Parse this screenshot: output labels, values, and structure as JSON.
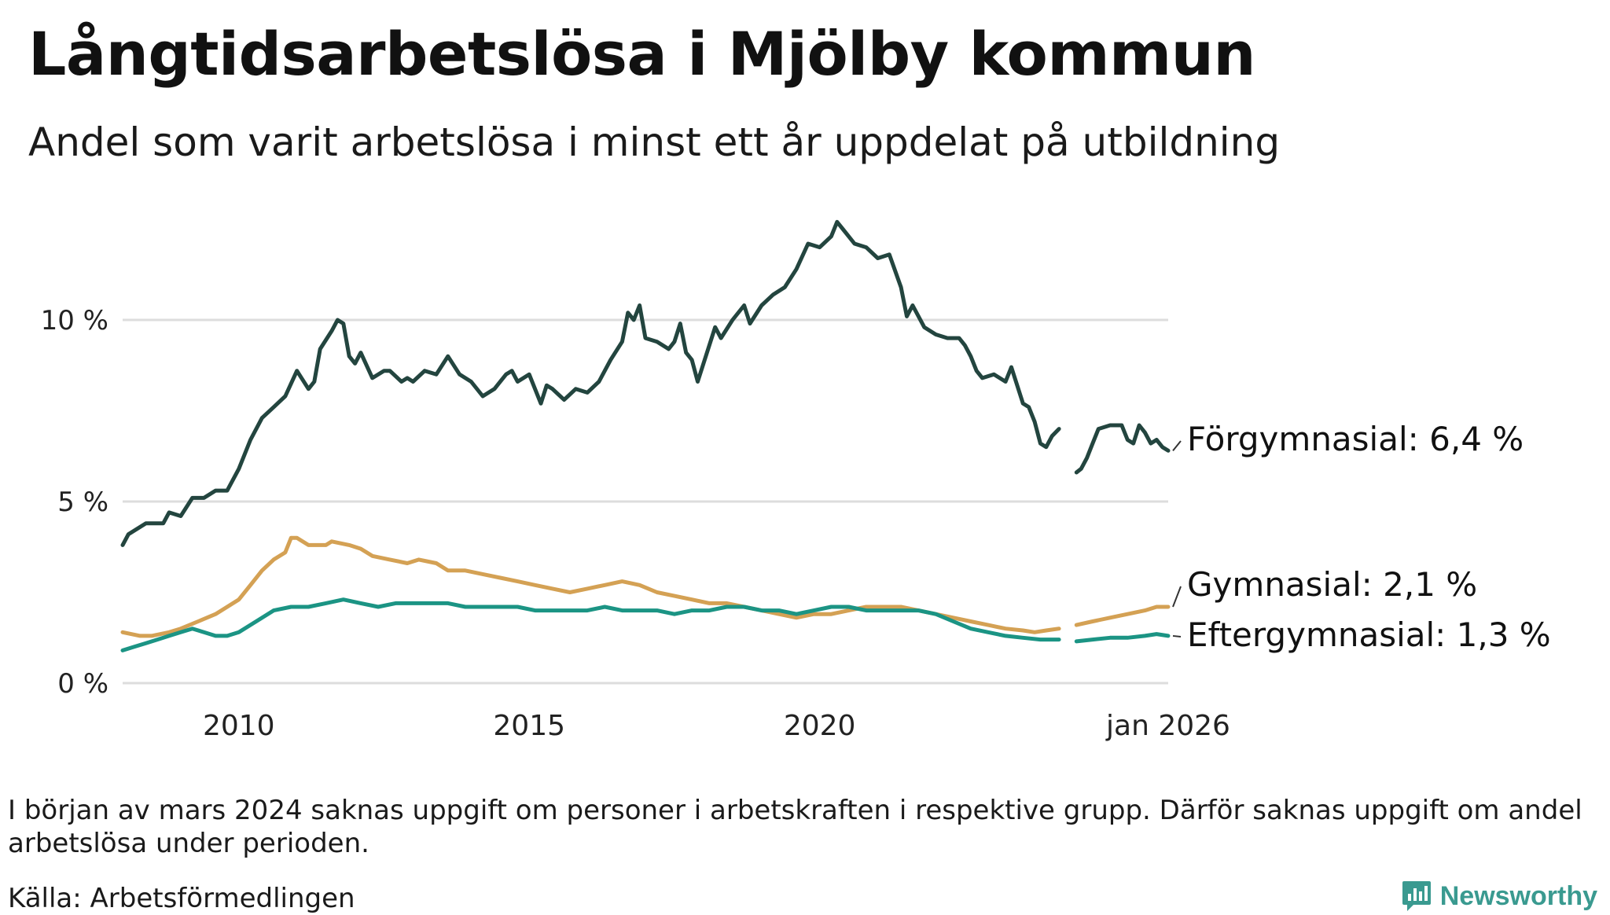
{
  "header": {
    "title": "Långtidsarbetslösa i Mjölby kommun",
    "subtitle": "Andel som varit arbetslösa i minst ett år uppdelat på utbildning"
  },
  "footer": {
    "note": "I början av mars 2024 saknas uppgift om personer i arbetskraften i respektive grupp. Därför saknas uppgift om andel arbetslösa under perioden.",
    "source": "Källa: Arbetsförmedlingen",
    "brand": "Newsworthy"
  },
  "colors": {
    "forgymnasial": "#23453f",
    "gymnasial": "#d4a154",
    "eftergymnasial": "#1b9484",
    "grid": "#dddddd",
    "brand": "#3a9a90"
  },
  "chart_data": {
    "type": "line",
    "xlabel": "",
    "ylabel": "",
    "xlim": [
      2008.0,
      2026.0
    ],
    "ylim": [
      0,
      13
    ],
    "yticks": [
      {
        "value": 0,
        "label": "0 %"
      },
      {
        "value": 5,
        "label": "5 %"
      },
      {
        "value": 10,
        "label": "10 %"
      }
    ],
    "xticks": [
      {
        "value": 2010,
        "label": "2010"
      },
      {
        "value": 2015,
        "label": "2015"
      },
      {
        "value": 2020,
        "label": "2020"
      },
      {
        "value": 2026.0,
        "label": "jan 2026"
      }
    ],
    "gap": [
      2024.12,
      2024.42
    ],
    "series": [
      {
        "key": "forgymnasial",
        "name": "Förgymnasial",
        "end_label": "Förgymnasial: 6,4 %",
        "points": [
          [
            2008.0,
            3.8
          ],
          [
            2008.1,
            4.1
          ],
          [
            2008.4,
            4.4
          ],
          [
            2008.7,
            4.4
          ],
          [
            2008.8,
            4.7
          ],
          [
            2009.0,
            4.6
          ],
          [
            2009.2,
            5.1
          ],
          [
            2009.4,
            5.1
          ],
          [
            2009.6,
            5.3
          ],
          [
            2009.8,
            5.3
          ],
          [
            2010.0,
            5.9
          ],
          [
            2010.2,
            6.7
          ],
          [
            2010.4,
            7.3
          ],
          [
            2010.6,
            7.6
          ],
          [
            2010.8,
            7.9
          ],
          [
            2011.0,
            8.6
          ],
          [
            2011.2,
            8.1
          ],
          [
            2011.3,
            8.3
          ],
          [
            2011.4,
            9.2
          ],
          [
            2011.6,
            9.7
          ],
          [
            2011.7,
            10.0
          ],
          [
            2011.8,
            9.9
          ],
          [
            2011.9,
            9.0
          ],
          [
            2012.0,
            8.8
          ],
          [
            2012.1,
            9.1
          ],
          [
            2012.3,
            8.4
          ],
          [
            2012.5,
            8.6
          ],
          [
            2012.6,
            8.6
          ],
          [
            2012.8,
            8.3
          ],
          [
            2012.9,
            8.4
          ],
          [
            2013.0,
            8.3
          ],
          [
            2013.2,
            8.6
          ],
          [
            2013.4,
            8.5
          ],
          [
            2013.6,
            9.0
          ],
          [
            2013.8,
            8.5
          ],
          [
            2014.0,
            8.3
          ],
          [
            2014.2,
            7.9
          ],
          [
            2014.4,
            8.1
          ],
          [
            2014.6,
            8.5
          ],
          [
            2014.7,
            8.6
          ],
          [
            2014.8,
            8.3
          ],
          [
            2015.0,
            8.5
          ],
          [
            2015.1,
            8.1
          ],
          [
            2015.2,
            7.7
          ],
          [
            2015.3,
            8.2
          ],
          [
            2015.4,
            8.1
          ],
          [
            2015.6,
            7.8
          ],
          [
            2015.8,
            8.1
          ],
          [
            2016.0,
            8.0
          ],
          [
            2016.2,
            8.3
          ],
          [
            2016.4,
            8.9
          ],
          [
            2016.6,
            9.4
          ],
          [
            2016.7,
            10.2
          ],
          [
            2016.8,
            10.0
          ],
          [
            2016.9,
            10.4
          ],
          [
            2017.0,
            9.5
          ],
          [
            2017.2,
            9.4
          ],
          [
            2017.4,
            9.2
          ],
          [
            2017.5,
            9.4
          ],
          [
            2017.6,
            9.9
          ],
          [
            2017.7,
            9.1
          ],
          [
            2017.8,
            8.9
          ],
          [
            2017.9,
            8.3
          ],
          [
            2018.0,
            8.8
          ],
          [
            2018.2,
            9.8
          ],
          [
            2018.3,
            9.5
          ],
          [
            2018.5,
            10.0
          ],
          [
            2018.7,
            10.4
          ],
          [
            2018.8,
            9.9
          ],
          [
            2019.0,
            10.4
          ],
          [
            2019.2,
            10.7
          ],
          [
            2019.4,
            10.9
          ],
          [
            2019.6,
            11.4
          ],
          [
            2019.8,
            12.1
          ],
          [
            2020.0,
            12.0
          ],
          [
            2020.2,
            12.3
          ],
          [
            2020.3,
            12.7
          ],
          [
            2020.4,
            12.5
          ],
          [
            2020.6,
            12.1
          ],
          [
            2020.8,
            12.0
          ],
          [
            2021.0,
            11.7
          ],
          [
            2021.2,
            11.8
          ],
          [
            2021.4,
            10.9
          ],
          [
            2021.5,
            10.1
          ],
          [
            2021.6,
            10.4
          ],
          [
            2021.8,
            9.8
          ],
          [
            2022.0,
            9.6
          ],
          [
            2022.2,
            9.5
          ],
          [
            2022.4,
            9.5
          ],
          [
            2022.5,
            9.3
          ],
          [
            2022.6,
            9.0
          ],
          [
            2022.7,
            8.6
          ],
          [
            2022.8,
            8.4
          ],
          [
            2023.0,
            8.5
          ],
          [
            2023.2,
            8.3
          ],
          [
            2023.3,
            8.7
          ],
          [
            2023.5,
            7.7
          ],
          [
            2023.6,
            7.6
          ],
          [
            2023.7,
            7.2
          ],
          [
            2023.8,
            6.6
          ],
          [
            2023.9,
            6.5
          ],
          [
            2024.0,
            6.8
          ],
          [
            2024.12,
            7.0
          ],
          [
            2024.42,
            5.8
          ],
          [
            2024.5,
            5.9
          ],
          [
            2024.6,
            6.2
          ],
          [
            2024.7,
            6.6
          ],
          [
            2024.8,
            7.0
          ],
          [
            2025.0,
            7.1
          ],
          [
            2025.2,
            7.1
          ],
          [
            2025.3,
            6.7
          ],
          [
            2025.4,
            6.6
          ],
          [
            2025.5,
            7.1
          ],
          [
            2025.6,
            6.9
          ],
          [
            2025.7,
            6.6
          ],
          [
            2025.8,
            6.7
          ],
          [
            2025.9,
            6.5
          ],
          [
            2026.0,
            6.4
          ]
        ]
      },
      {
        "key": "gymnasial",
        "name": "Gymnasial",
        "end_label": "Gymnasial: 2,1 %",
        "points": [
          [
            2008.0,
            1.4
          ],
          [
            2008.3,
            1.3
          ],
          [
            2008.5,
            1.3
          ],
          [
            2008.8,
            1.4
          ],
          [
            2009.0,
            1.5
          ],
          [
            2009.3,
            1.7
          ],
          [
            2009.6,
            1.9
          ],
          [
            2009.8,
            2.1
          ],
          [
            2010.0,
            2.3
          ],
          [
            2010.2,
            2.7
          ],
          [
            2010.4,
            3.1
          ],
          [
            2010.6,
            3.4
          ],
          [
            2010.8,
            3.6
          ],
          [
            2010.9,
            4.0
          ],
          [
            2011.0,
            4.0
          ],
          [
            2011.2,
            3.8
          ],
          [
            2011.5,
            3.8
          ],
          [
            2011.6,
            3.9
          ],
          [
            2011.9,
            3.8
          ],
          [
            2012.1,
            3.7
          ],
          [
            2012.3,
            3.5
          ],
          [
            2012.6,
            3.4
          ],
          [
            2012.9,
            3.3
          ],
          [
            2013.1,
            3.4
          ],
          [
            2013.4,
            3.3
          ],
          [
            2013.6,
            3.1
          ],
          [
            2013.9,
            3.1
          ],
          [
            2014.2,
            3.0
          ],
          [
            2014.5,
            2.9
          ],
          [
            2014.8,
            2.8
          ],
          [
            2015.1,
            2.7
          ],
          [
            2015.4,
            2.6
          ],
          [
            2015.7,
            2.5
          ],
          [
            2016.0,
            2.6
          ],
          [
            2016.3,
            2.7
          ],
          [
            2016.6,
            2.8
          ],
          [
            2016.9,
            2.7
          ],
          [
            2017.2,
            2.5
          ],
          [
            2017.5,
            2.4
          ],
          [
            2017.8,
            2.3
          ],
          [
            2018.1,
            2.2
          ],
          [
            2018.4,
            2.2
          ],
          [
            2018.7,
            2.1
          ],
          [
            2019.0,
            2.0
          ],
          [
            2019.3,
            1.9
          ],
          [
            2019.6,
            1.8
          ],
          [
            2019.9,
            1.9
          ],
          [
            2020.2,
            1.9
          ],
          [
            2020.5,
            2.0
          ],
          [
            2020.8,
            2.1
          ],
          [
            2021.1,
            2.1
          ],
          [
            2021.4,
            2.1
          ],
          [
            2021.7,
            2.0
          ],
          [
            2022.0,
            1.9
          ],
          [
            2022.3,
            1.8
          ],
          [
            2022.6,
            1.7
          ],
          [
            2022.9,
            1.6
          ],
          [
            2023.2,
            1.5
          ],
          [
            2023.5,
            1.45
          ],
          [
            2023.7,
            1.4
          ],
          [
            2023.9,
            1.45
          ],
          [
            2024.12,
            1.5
          ],
          [
            2024.42,
            1.6
          ],
          [
            2024.7,
            1.7
          ],
          [
            2025.0,
            1.8
          ],
          [
            2025.3,
            1.9
          ],
          [
            2025.6,
            2.0
          ],
          [
            2025.8,
            2.1
          ],
          [
            2026.0,
            2.1
          ]
        ]
      },
      {
        "key": "eftergymnasial",
        "name": "Eftergymnasial",
        "end_label": "Eftergymnasial: 1,3 %",
        "points": [
          [
            2008.0,
            0.9
          ],
          [
            2008.2,
            1.0
          ],
          [
            2008.4,
            1.1
          ],
          [
            2008.6,
            1.2
          ],
          [
            2008.8,
            1.3
          ],
          [
            2009.0,
            1.4
          ],
          [
            2009.2,
            1.5
          ],
          [
            2009.4,
            1.4
          ],
          [
            2009.6,
            1.3
          ],
          [
            2009.8,
            1.3
          ],
          [
            2010.0,
            1.4
          ],
          [
            2010.3,
            1.7
          ],
          [
            2010.6,
            2.0
          ],
          [
            2010.9,
            2.1
          ],
          [
            2011.2,
            2.1
          ],
          [
            2011.5,
            2.2
          ],
          [
            2011.8,
            2.3
          ],
          [
            2012.1,
            2.2
          ],
          [
            2012.4,
            2.1
          ],
          [
            2012.7,
            2.2
          ],
          [
            2013.0,
            2.2
          ],
          [
            2013.3,
            2.2
          ],
          [
            2013.6,
            2.2
          ],
          [
            2013.9,
            2.1
          ],
          [
            2014.2,
            2.1
          ],
          [
            2014.5,
            2.1
          ],
          [
            2014.8,
            2.1
          ],
          [
            2015.1,
            2.0
          ],
          [
            2015.4,
            2.0
          ],
          [
            2015.7,
            2.0
          ],
          [
            2016.0,
            2.0
          ],
          [
            2016.3,
            2.1
          ],
          [
            2016.6,
            2.0
          ],
          [
            2016.9,
            2.0
          ],
          [
            2017.2,
            2.0
          ],
          [
            2017.5,
            1.9
          ],
          [
            2017.8,
            2.0
          ],
          [
            2018.1,
            2.0
          ],
          [
            2018.4,
            2.1
          ],
          [
            2018.7,
            2.1
          ],
          [
            2019.0,
            2.0
          ],
          [
            2019.3,
            2.0
          ],
          [
            2019.6,
            1.9
          ],
          [
            2019.9,
            2.0
          ],
          [
            2020.2,
            2.1
          ],
          [
            2020.5,
            2.1
          ],
          [
            2020.8,
            2.0
          ],
          [
            2021.1,
            2.0
          ],
          [
            2021.4,
            2.0
          ],
          [
            2021.7,
            2.0
          ],
          [
            2022.0,
            1.9
          ],
          [
            2022.3,
            1.7
          ],
          [
            2022.6,
            1.5
          ],
          [
            2022.9,
            1.4
          ],
          [
            2023.2,
            1.3
          ],
          [
            2023.5,
            1.25
          ],
          [
            2023.8,
            1.2
          ],
          [
            2024.0,
            1.2
          ],
          [
            2024.12,
            1.2
          ],
          [
            2024.42,
            1.15
          ],
          [
            2024.7,
            1.2
          ],
          [
            2025.0,
            1.25
          ],
          [
            2025.3,
            1.25
          ],
          [
            2025.6,
            1.3
          ],
          [
            2025.8,
            1.35
          ],
          [
            2026.0,
            1.3
          ]
        ]
      }
    ]
  }
}
